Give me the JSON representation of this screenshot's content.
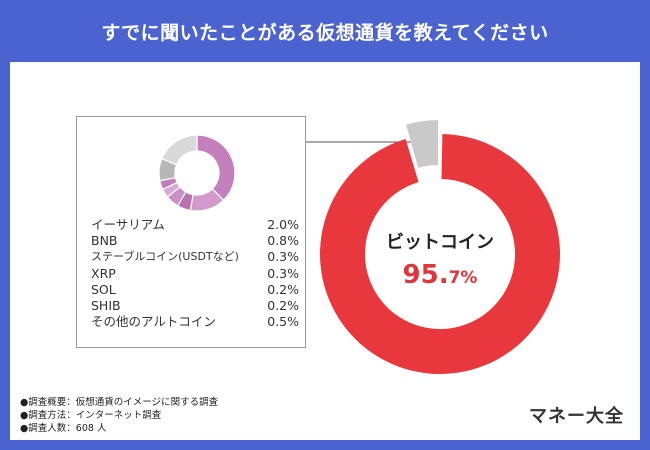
{
  "title": "すでに聞いたことがある仮想通貨を教えてください",
  "brand": "マネー大全",
  "colors": {
    "header_bg": "#4b63cf",
    "main_accent": "#e8383d",
    "other_gray": "#c9c9c9",
    "sub_purple": "#c47fbd",
    "sub_gray": "#d9d9d9"
  },
  "chart_data": [
    {
      "type": "pie",
      "title": "すでに聞いたことがある仮想通貨を教えてください",
      "slices": [
        {
          "label": "ビットコイン",
          "value": 95.7
        },
        {
          "label": "その他",
          "value": 4.3
        }
      ],
      "center_label": "ビットコイン",
      "center_value_int": "95.",
      "center_value_frac": "7%"
    },
    {
      "type": "pie",
      "slices": [
        {
          "label": "イーサリアム",
          "value": 2.0,
          "display": "2.0%"
        },
        {
          "label": "BNB",
          "value": 0.8,
          "display": "0.8%"
        },
        {
          "label": "ステーブルコイン(USDTなど)",
          "value": 0.3,
          "display": "0.3%"
        },
        {
          "label": "XRP",
          "value": 0.3,
          "display": "0.3%"
        },
        {
          "label": "SOL",
          "value": 0.2,
          "display": "0.2%"
        },
        {
          "label": "SHIB",
          "value": 0.2,
          "display": "0.2%"
        },
        {
          "label": "その他のアルトコイン",
          "value": 0.5,
          "display": "0.5%"
        }
      ]
    }
  ],
  "notes": [
    "●調査概要：仮想通貨のイメージに関する調査",
    "●調査方法：インターネット調査",
    "●調査人数：608 人"
  ]
}
